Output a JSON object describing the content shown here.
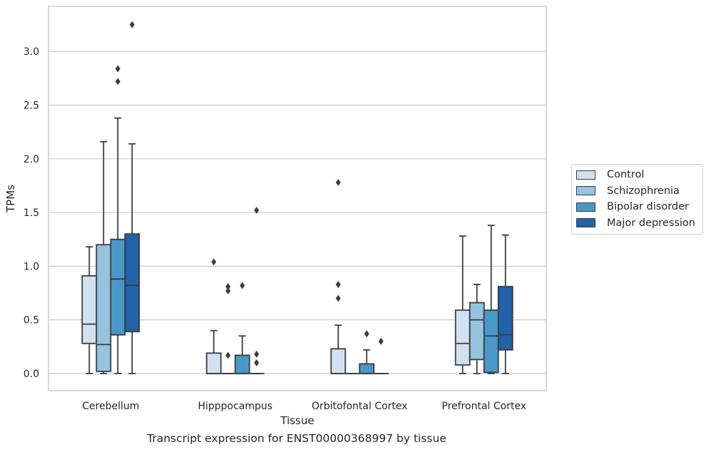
{
  "chart_data": {
    "type": "box",
    "xlabel": "Tissue",
    "ylabel": "TPMs",
    "caption": "Transcript expression for ENST00000368997 by tissue",
    "ylim": [
      -0.16,
      3.42
    ],
    "yticks": [
      "0.0",
      "0.5",
      "1.0",
      "1.5",
      "2.0",
      "2.5",
      "3.0"
    ],
    "grid": "horizontal",
    "legend_position": "right",
    "categories": [
      "Cerebellum",
      "Hipppocampus",
      "Orbitofontal Cortex",
      "Prefrontal Cortex"
    ],
    "series": [
      {
        "name": "Control",
        "color": "#d0e1f2",
        "boxes": [
          {
            "whisker_low": 0.0,
            "q1": 0.28,
            "median": 0.46,
            "q3": 0.91,
            "whisker_high": 1.18,
            "outliers": []
          },
          {
            "whisker_low": 0.0,
            "q1": 0.0,
            "median": 0.0,
            "q3": 0.19,
            "whisker_high": 0.4,
            "outliers": [
              1.04
            ]
          },
          {
            "whisker_low": 0.0,
            "q1": 0.0,
            "median": 0.0,
            "q3": 0.23,
            "whisker_high": 0.45,
            "outliers": [
              0.7,
              0.83,
              1.78
            ]
          },
          {
            "whisker_low": 0.0,
            "q1": 0.08,
            "median": 0.28,
            "q3": 0.59,
            "whisker_high": 1.28,
            "outliers": []
          }
        ]
      },
      {
        "name": "Schizophrenia",
        "color": "#94c4df",
        "boxes": [
          {
            "whisker_low": 0.0,
            "q1": 0.02,
            "median": 0.27,
            "q3": 1.2,
            "whisker_high": 2.16,
            "outliers": []
          },
          {
            "whisker_low": 0.0,
            "q1": 0.0,
            "median": 0.0,
            "q3": 0.0,
            "whisker_high": 0.0,
            "outliers": [
              0.17,
              0.77,
              0.81
            ]
          },
          {
            "whisker_low": 0.0,
            "q1": 0.0,
            "median": 0.0,
            "q3": 0.0,
            "whisker_high": 0.0,
            "outliers": []
          },
          {
            "whisker_low": 0.0,
            "q1": 0.13,
            "median": 0.5,
            "q3": 0.66,
            "whisker_high": 0.83,
            "outliers": []
          }
        ]
      },
      {
        "name": "Bipolar disorder",
        "color": "#4a98c9",
        "boxes": [
          {
            "whisker_low": 0.0,
            "q1": 0.36,
            "median": 0.88,
            "q3": 1.25,
            "whisker_high": 2.38,
            "outliers": [
              2.72,
              2.84
            ]
          },
          {
            "whisker_low": 0.0,
            "q1": 0.0,
            "median": 0.0,
            "q3": 0.17,
            "whisker_high": 0.35,
            "outliers": [
              0.82
            ]
          },
          {
            "whisker_low": 0.0,
            "q1": 0.0,
            "median": 0.0,
            "q3": 0.09,
            "whisker_high": 0.22,
            "outliers": [
              0.37
            ]
          },
          {
            "whisker_low": 0.0,
            "q1": 0.01,
            "median": 0.35,
            "q3": 0.59,
            "whisker_high": 1.38,
            "outliers": []
          }
        ]
      },
      {
        "name": "Major depression",
        "color": "#2163aa",
        "boxes": [
          {
            "whisker_low": 0.0,
            "q1": 0.39,
            "median": 0.82,
            "q3": 1.3,
            "whisker_high": 2.14,
            "outliers": [
              3.25
            ]
          },
          {
            "whisker_low": 0.0,
            "q1": 0.0,
            "median": 0.0,
            "q3": 0.0,
            "whisker_high": 0.0,
            "outliers": [
              0.1,
              0.18,
              1.52
            ]
          },
          {
            "whisker_low": 0.0,
            "q1": 0.0,
            "median": 0.0,
            "q3": 0.0,
            "whisker_high": 0.0,
            "outliers": [
              0.3
            ]
          },
          {
            "whisker_low": 0.0,
            "q1": 0.22,
            "median": 0.36,
            "q3": 0.81,
            "whisker_high": 1.29,
            "outliers": []
          }
        ]
      }
    ]
  }
}
